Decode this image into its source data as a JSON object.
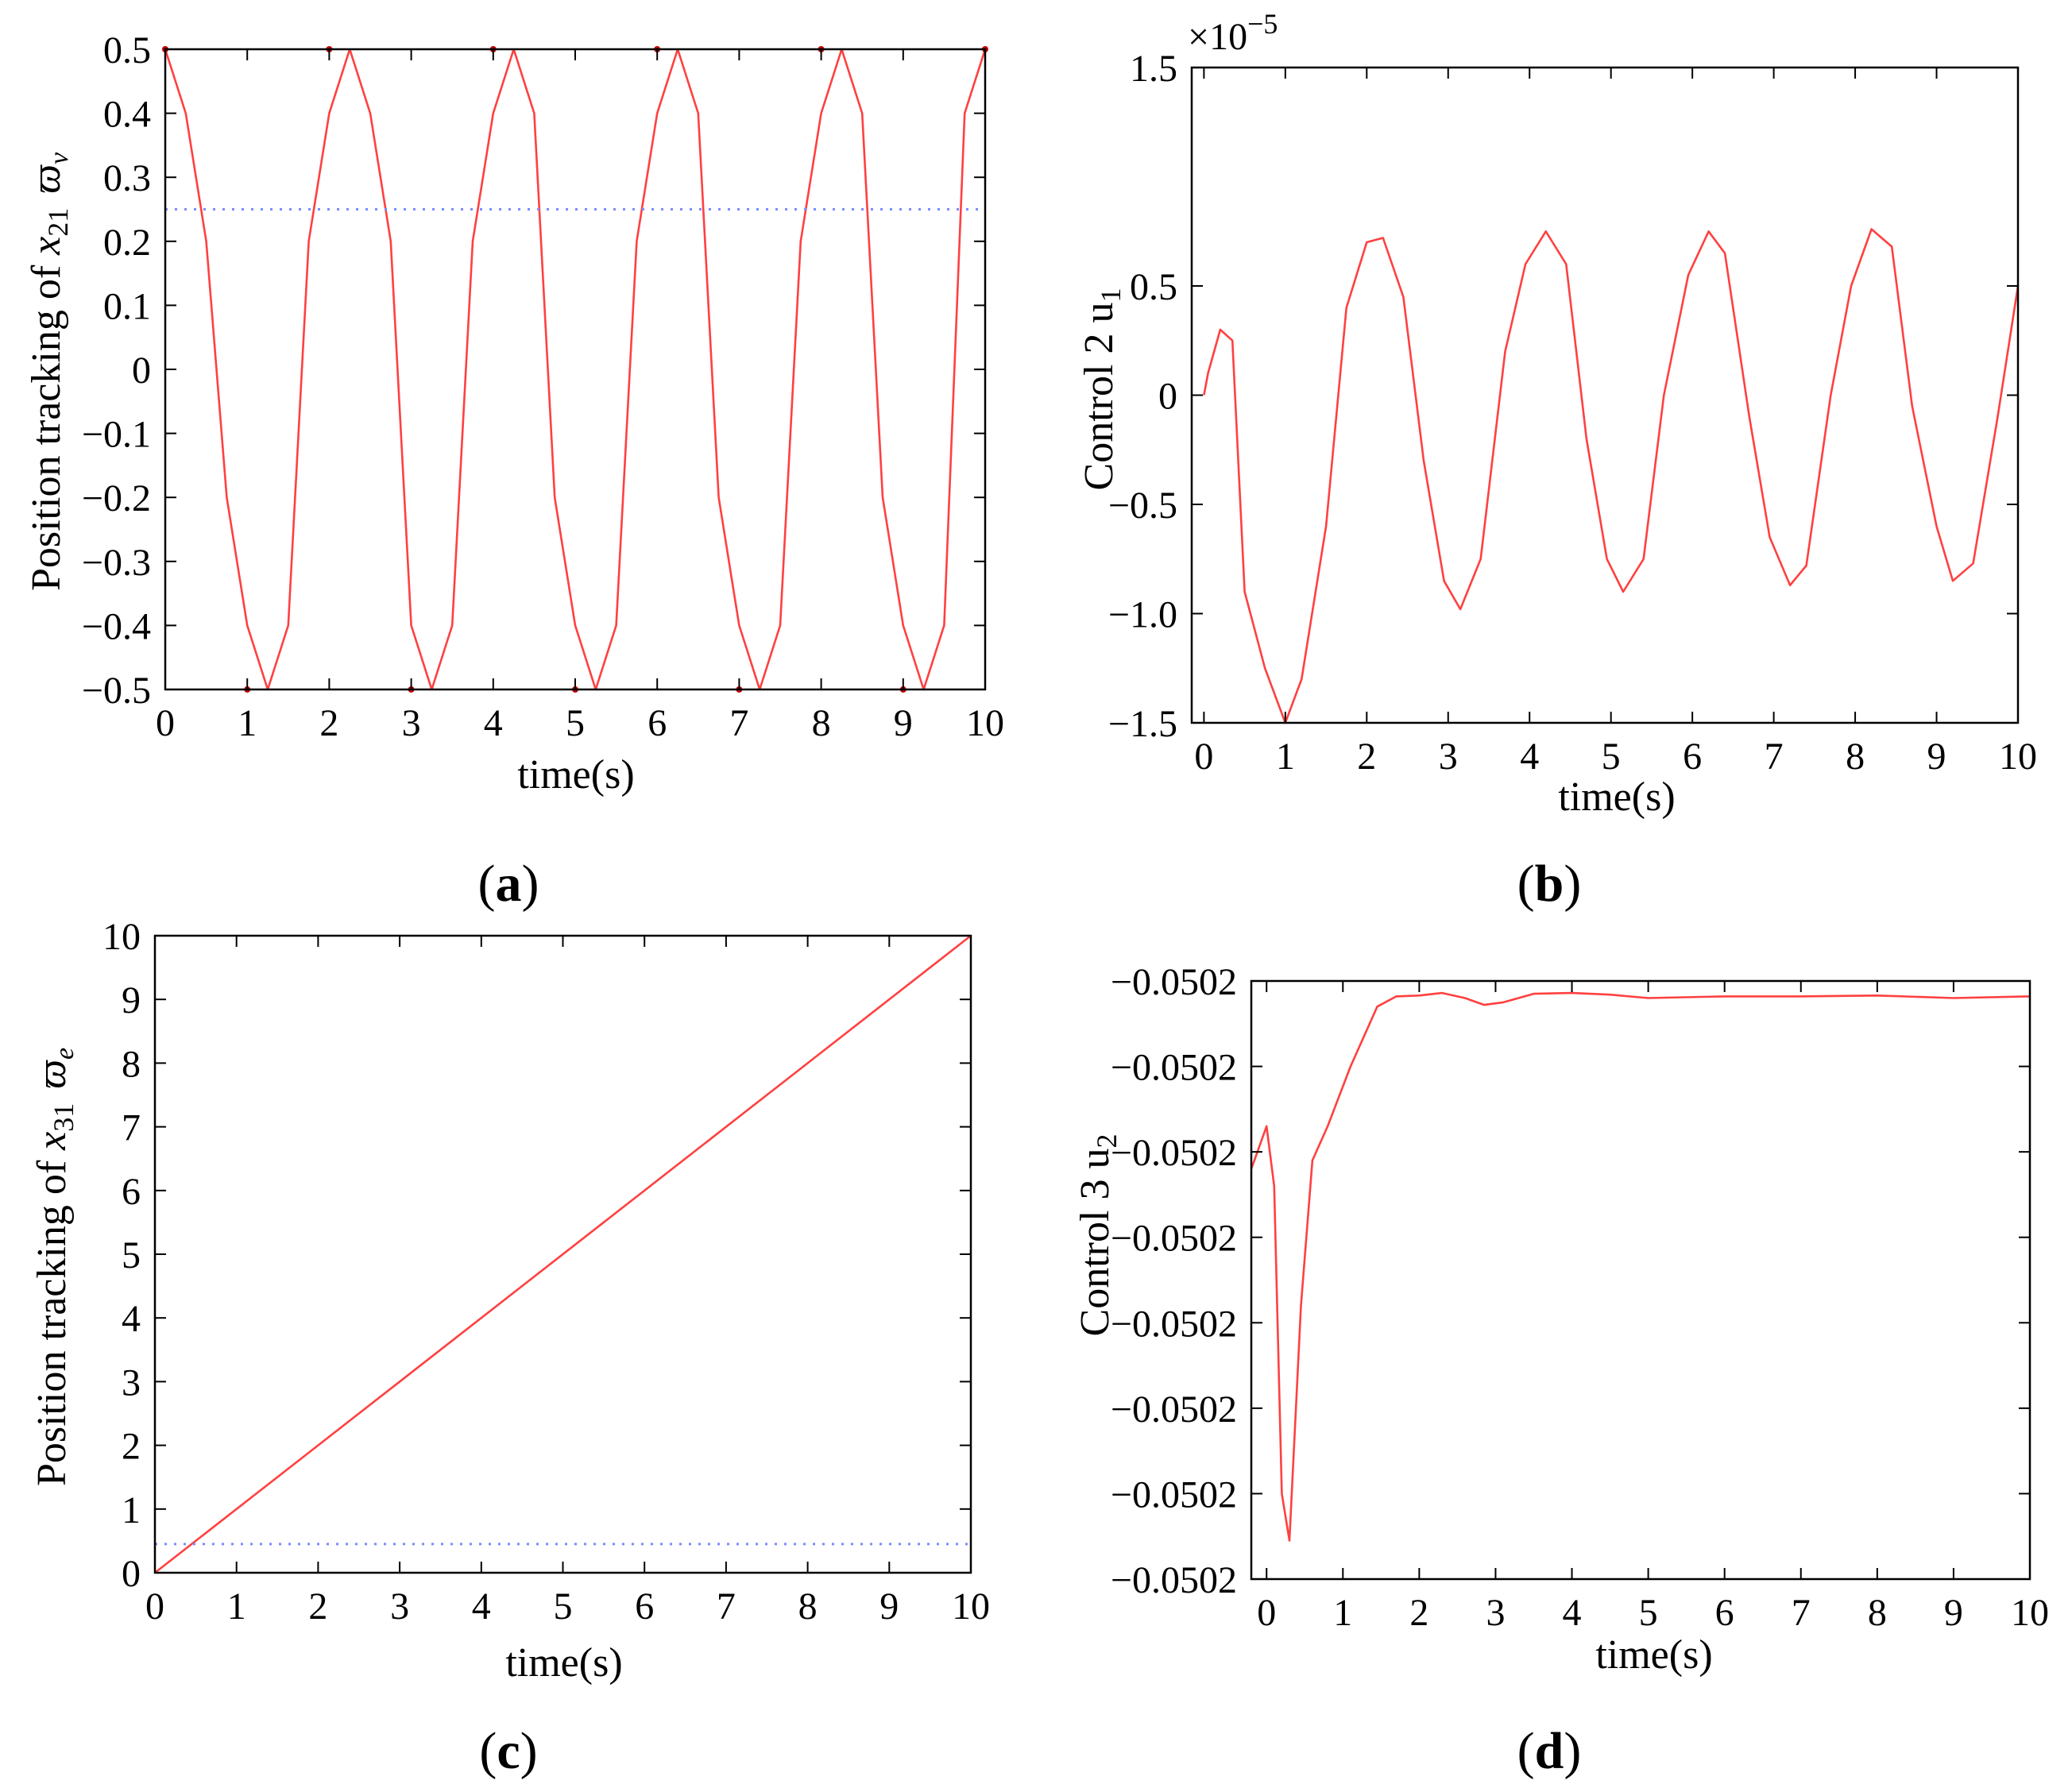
{
  "colors": {
    "line": "#ff4040",
    "dotted": "#7a8cff",
    "marker": "#c00000",
    "axis": "#000000"
  },
  "chart_data": [
    {
      "id": "a",
      "type": "line",
      "panel_label": "a",
      "xlabel": "time(s)",
      "ylabel": "Position tracking of x21 ϖv",
      "ylabel_parts": {
        "prefix": "Position tracking of ",
        "var": "x",
        "sub": "21",
        "sym": "ϖ",
        "sym_sub": "v"
      },
      "xlim": [
        0,
        10
      ],
      "ylim": [
        -0.5,
        0.5
      ],
      "x_ticks": [
        0,
        1,
        2,
        3,
        4,
        5,
        6,
        7,
        8,
        9,
        10
      ],
      "x_tick_labels": [
        "0",
        "1",
        "2",
        "3",
        "4",
        "5",
        "6",
        "7",
        "8",
        "9",
        "10"
      ],
      "y_ticks": [
        0.5,
        0.4,
        0.3,
        0.2,
        0.1,
        0,
        -0.1,
        -0.2,
        -0.3,
        -0.4,
        -0.5
      ],
      "y_tick_labels": [
        "0.5",
        "0.4",
        "0.3",
        "0.2",
        "0.1",
        "0",
        "−0.1",
        "−0.2",
        "−0.3",
        "−0.4",
        "−0.5"
      ],
      "series": [
        {
          "style": "solid",
          "color": "#ff4040",
          "x": [
            0,
            0.25,
            0.5,
            0.75,
            1,
            1.25,
            1.5,
            1.75,
            2,
            2.25,
            2.5,
            2.75,
            3,
            3.25,
            3.5,
            3.75,
            4,
            4.25,
            4.5,
            4.75,
            5,
            5.25,
            5.5,
            5.75,
            6,
            6.25,
            6.5,
            6.75,
            7,
            7.25,
            7.5,
            7.75,
            8,
            8.25,
            8.5,
            8.75,
            9,
            9.25,
            9.5,
            9.75,
            10
          ],
          "y": [
            0.5,
            0.4,
            0.2,
            -0.2,
            -0.4,
            -0.5,
            -0.4,
            0.2,
            0.4,
            0.5,
            0.4,
            0.2,
            -0.4,
            -0.5,
            -0.4,
            0.2,
            0.4,
            0.5,
            0.4,
            -0.2,
            -0.4,
            -0.5,
            -0.4,
            0.2,
            0.4,
            0.5,
            0.4,
            -0.2,
            -0.4,
            -0.5,
            -0.4,
            0.2,
            0.4,
            0.5,
            0.4,
            -0.2,
            -0.4,
            -0.5,
            -0.4,
            0.4,
            0.5
          ]
        },
        {
          "style": "dotted",
          "color": "#7a8cff",
          "x": [
            0,
            10
          ],
          "y": [
            0.25,
            0.25
          ]
        }
      ],
      "markers": {
        "color": "#c00000",
        "x": [
          0,
          1,
          2,
          3,
          4,
          5,
          6,
          7,
          8,
          9,
          10
        ],
        "y": [
          0.5,
          -0.5,
          0.5,
          -0.5,
          0.5,
          -0.5,
          0.5,
          -0.5,
          0.5,
          -0.5,
          0.5
        ]
      }
    },
    {
      "id": "b",
      "type": "line",
      "panel_label": "b",
      "xlabel": "time(s)",
      "ylabel": "Control 2 u1",
      "ylabel_parts": {
        "prefix": "Control 2 u",
        "sub": "1"
      },
      "exponent_label": "×10−5",
      "exponent_parts": {
        "base": "×10",
        "exp": "−5"
      },
      "xlim": [
        -0.15,
        10
      ],
      "ylim": [
        -1.5,
        1.5
      ],
      "x_ticks": [
        0,
        1,
        2,
        3,
        4,
        5,
        6,
        7,
        8,
        9,
        10
      ],
      "x_tick_labels": [
        "0",
        "1",
        "2",
        "3",
        "4",
        "5",
        "6",
        "7",
        "8",
        "9",
        "10"
      ],
      "y_ticks": [
        1.5,
        0.5,
        0,
        -0.5,
        -1.0,
        -1.5
      ],
      "y_tick_labels": [
        "1.5",
        "0.5",
        "0",
        "−0.5",
        "−1.0",
        "−1.5"
      ],
      "y_tick_positions": [
        1.5,
        0.5,
        0,
        -0.5,
        -1.0,
        -1.5
      ],
      "series": [
        {
          "style": "solid",
          "color": "#ff4040",
          "x": [
            0,
            0.05,
            0.2,
            0.35,
            0.5,
            0.75,
            1,
            1.2,
            1.5,
            1.75,
            2,
            2.2,
            2.45,
            2.7,
            2.95,
            3.15,
            3.4,
            3.7,
            3.95,
            4.2,
            4.45,
            4.7,
            4.95,
            5.15,
            5.4,
            5.65,
            5.95,
            6.2,
            6.4,
            6.7,
            6.95,
            7.2,
            7.4,
            7.7,
            7.95,
            8.2,
            8.45,
            8.7,
            9,
            9.2,
            9.45,
            9.75,
            10
          ],
          "y": [
            0,
            0.1,
            0.3,
            0.25,
            -0.9,
            -1.25,
            -1.5,
            -1.3,
            -0.6,
            0.4,
            0.7,
            0.72,
            0.45,
            -0.3,
            -0.85,
            -0.98,
            -0.75,
            0.2,
            0.6,
            0.75,
            0.6,
            -0.2,
            -0.75,
            -0.9,
            -0.75,
            0,
            0.55,
            0.75,
            0.65,
            -0.1,
            -0.65,
            -0.87,
            -0.78,
            0,
            0.5,
            0.76,
            0.68,
            -0.05,
            -0.6,
            -0.85,
            -0.77,
            -0.1,
            0.5
          ]
        }
      ]
    },
    {
      "id": "c",
      "type": "line",
      "panel_label": "c",
      "xlabel": "time(s)",
      "ylabel": "Position tracking of x31 ϖe",
      "ylabel_parts": {
        "prefix": "Position tracking of ",
        "var": "x",
        "sub": "31",
        "sym": "ϖ",
        "sym_sub": "e"
      },
      "xlim": [
        0,
        10
      ],
      "ylim": [
        0,
        10
      ],
      "x_ticks": [
        0,
        1,
        2,
        3,
        4,
        5,
        6,
        7,
        8,
        9,
        10
      ],
      "x_tick_labels": [
        "0",
        "1",
        "2",
        "3",
        "4",
        "5",
        "6",
        "7",
        "8",
        "9",
        "10"
      ],
      "y_ticks": [
        0,
        1,
        2,
        3,
        4,
        5,
        6,
        7,
        8,
        9,
        10
      ],
      "y_tick_labels": [
        "0",
        "1",
        "2",
        "3",
        "4",
        "5",
        "6",
        "7",
        "8",
        "9",
        "10"
      ],
      "series": [
        {
          "style": "solid",
          "color": "#ff4040",
          "x": [
            0,
            10
          ],
          "y": [
            0,
            10
          ]
        },
        {
          "style": "dotted",
          "color": "#7a8cff",
          "x": [
            0,
            10
          ],
          "y": [
            0.45,
            0.45
          ]
        }
      ]
    },
    {
      "id": "d",
      "type": "line",
      "panel_label": "d",
      "xlabel": "time(s)",
      "ylabel": "Control 3 u2",
      "ylabel_parts": {
        "prefix": "Control 3 u",
        "sub": "2"
      },
      "xlim": [
        -0.2,
        10
      ],
      "ylim": [
        0,
        7
      ],
      "x_ticks": [
        0,
        1,
        2,
        3,
        4,
        5,
        6,
        7,
        8,
        9,
        10
      ],
      "x_tick_labels": [
        "0",
        "1",
        "2",
        "3",
        "4",
        "5",
        "6",
        "7",
        "8",
        "9",
        "10"
      ],
      "y_ticks": [
        7,
        6,
        5,
        4,
        3,
        2,
        1,
        0
      ],
      "y_tick_labels": [
        "−0.0502",
        "−0.0502",
        "−0.0502",
        "−0.0502",
        "−0.0502",
        "−0.0502",
        "−0.0502",
        "−0.0502"
      ],
      "series": [
        {
          "style": "solid",
          "color": "#ff4040",
          "x": [
            -0.2,
            0,
            0.1,
            0.2,
            0.3,
            0.45,
            0.6,
            0.8,
            1.1,
            1.45,
            1.7,
            2,
            2.3,
            2.6,
            2.85,
            3.1,
            3.5,
            4,
            4.5,
            5,
            6,
            7,
            8,
            9,
            10
          ],
          "y": [
            4.8,
            5.3,
            4.6,
            1.0,
            0.45,
            3.2,
            4.9,
            5.3,
            6.0,
            6.7,
            6.82,
            6.83,
            6.86,
            6.8,
            6.72,
            6.75,
            6.85,
            6.86,
            6.84,
            6.8,
            6.82,
            6.82,
            6.83,
            6.8,
            6.82
          ]
        }
      ]
    }
  ]
}
